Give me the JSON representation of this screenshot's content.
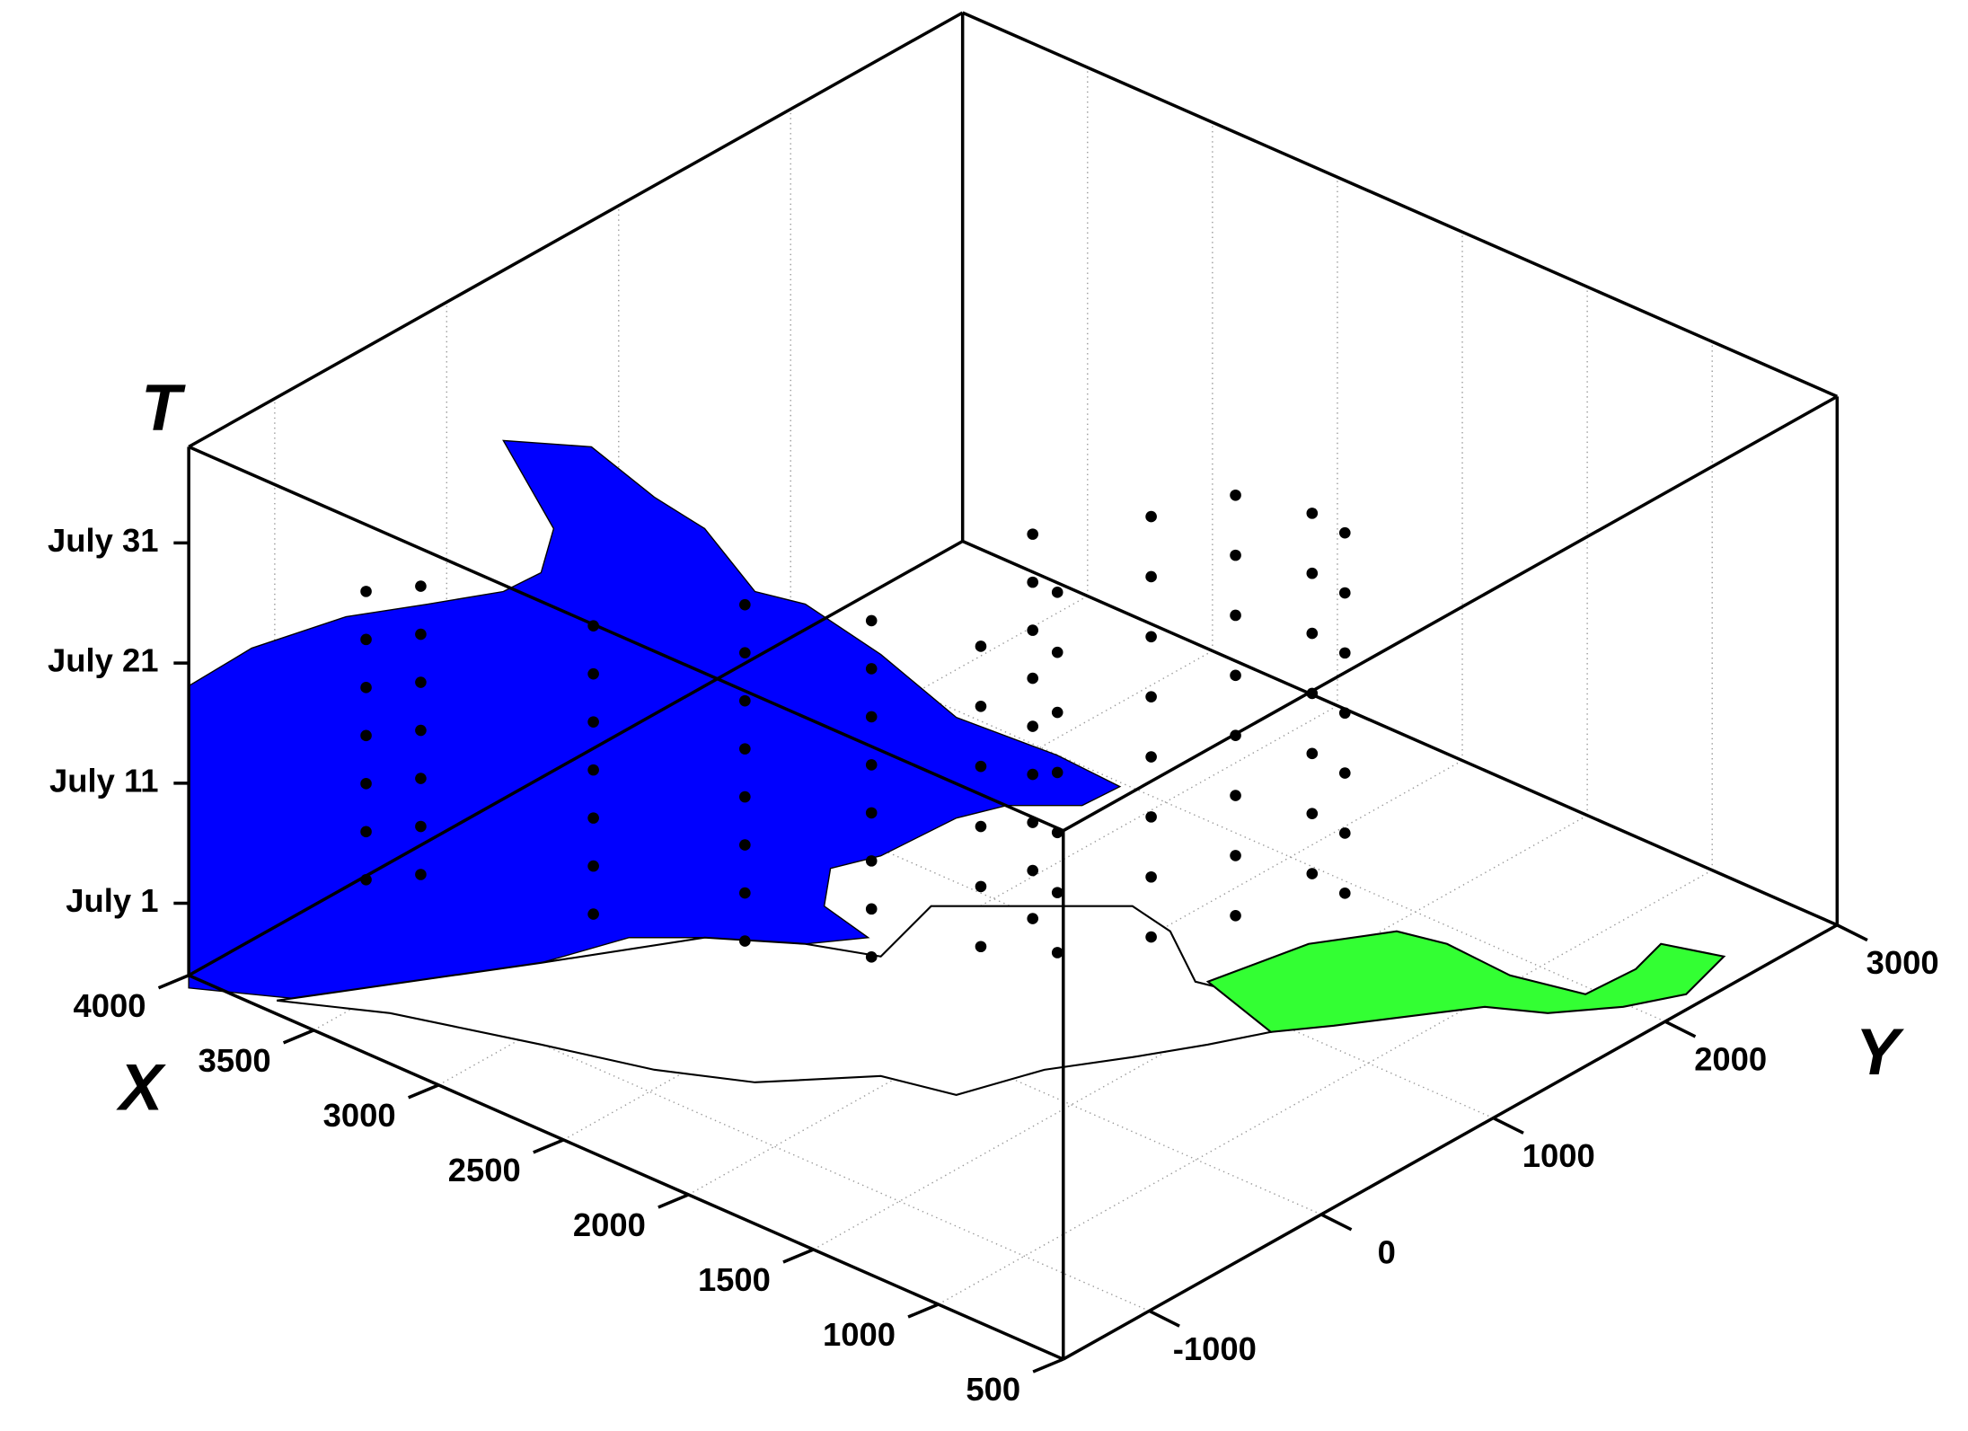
{
  "chart_data": {
    "type": "scatter3d",
    "x_label": "X",
    "y_label": "Y",
    "z_label": "T",
    "xlim": [
      500,
      4000
    ],
    "xticks": [
      500,
      1000,
      1500,
      2000,
      2500,
      3000,
      3500,
      4000
    ],
    "ylim": [
      -1500,
      3000
    ],
    "yticks": [
      -1000,
      0,
      1000,
      2000,
      3000
    ],
    "zlim": [
      176,
      220
    ],
    "zticks": [
      {
        "value": 182,
        "label": "July 1"
      },
      {
        "value": 192,
        "label": "July 11"
      },
      {
        "value": 202,
        "label": "July 21"
      },
      {
        "value": 212,
        "label": "July 31"
      }
    ],
    "grid": true,
    "color": "#000000",
    "x": [
      3600,
      3600,
      3600,
      3600,
      3600,
      3600,
      3600,
      3450,
      3450,
      3450,
      3450,
      3450,
      3450,
      3450,
      3000,
      3000,
      3000,
      3000,
      3000,
      3000,
      3000,
      2600,
      2600,
      2600,
      2600,
      2600,
      2600,
      2600,
      2600,
      2300,
      2300,
      2300,
      2300,
      2300,
      2300,
      2300,
      2300,
      2140,
      2140,
      2140,
      2140,
      2140,
      2140,
      2140,
      2140,
      2140,
      1900,
      1900,
      1900,
      1900,
      1900,
      1900,
      1900,
      1800,
      1800,
      1800,
      1800,
      1800,
      1800,
      1800,
      1800,
      1600,
      1600,
      1600,
      1600,
      1600,
      1600,
      1600,
      1600,
      1500,
      1500,
      1500,
      1500,
      1500,
      1500,
      1500,
      2000,
      2000,
      2000,
      2000,
      2000,
      2000,
      1300,
      1300,
      1300,
      1300,
      1300,
      1300,
      1300
    ],
    "y": [
      -1050,
      -1050,
      -1050,
      -1050,
      -1050,
      -1050,
      -1050,
      -950,
      -950,
      -950,
      -950,
      -950,
      -950,
      -950,
      -600,
      -600,
      -600,
      -600,
      -600,
      -600,
      -600,
      -300,
      -300,
      -300,
      -300,
      -300,
      -300,
      -300,
      -300,
      0,
      0,
      0,
      0,
      0,
      0,
      0,
      0,
      705,
      705,
      705,
      705,
      705,
      705,
      705,
      705,
      705,
      500,
      500,
      500,
      500,
      500,
      500,
      500,
      900,
      900,
      900,
      900,
      900,
      900,
      900,
      900,
      1100,
      1100,
      1100,
      1100,
      1100,
      1100,
      1100,
      1100,
      1400,
      1400,
      1400,
      1400,
      1400,
      1400,
      1400,
      200,
      200,
      200,
      200,
      200,
      200,
      1300,
      1300,
      1300,
      1300,
      1300,
      1300,
      1300
    ],
    "t": [
      184,
      188,
      192,
      196,
      200,
      204,
      208,
      185,
      189,
      193,
      197,
      201,
      205,
      209,
      183,
      187,
      191,
      195,
      199,
      203,
      207,
      182,
      186,
      190,
      194,
      198,
      202,
      206,
      210,
      181,
      185,
      189,
      193,
      197,
      201,
      205,
      209,
      180,
      184,
      188,
      192,
      196,
      200,
      204,
      208,
      212,
      181,
      186,
      191,
      196,
      201,
      206,
      211,
      180,
      185,
      190,
      195,
      200,
      205,
      210,
      215,
      182,
      187,
      192,
      197,
      202,
      207,
      212,
      217,
      184,
      189,
      194,
      199,
      204,
      209,
      214,
      183,
      188,
      193,
      198,
      203,
      208,
      185,
      190,
      195,
      200,
      205,
      210,
      215
    ]
  }
}
